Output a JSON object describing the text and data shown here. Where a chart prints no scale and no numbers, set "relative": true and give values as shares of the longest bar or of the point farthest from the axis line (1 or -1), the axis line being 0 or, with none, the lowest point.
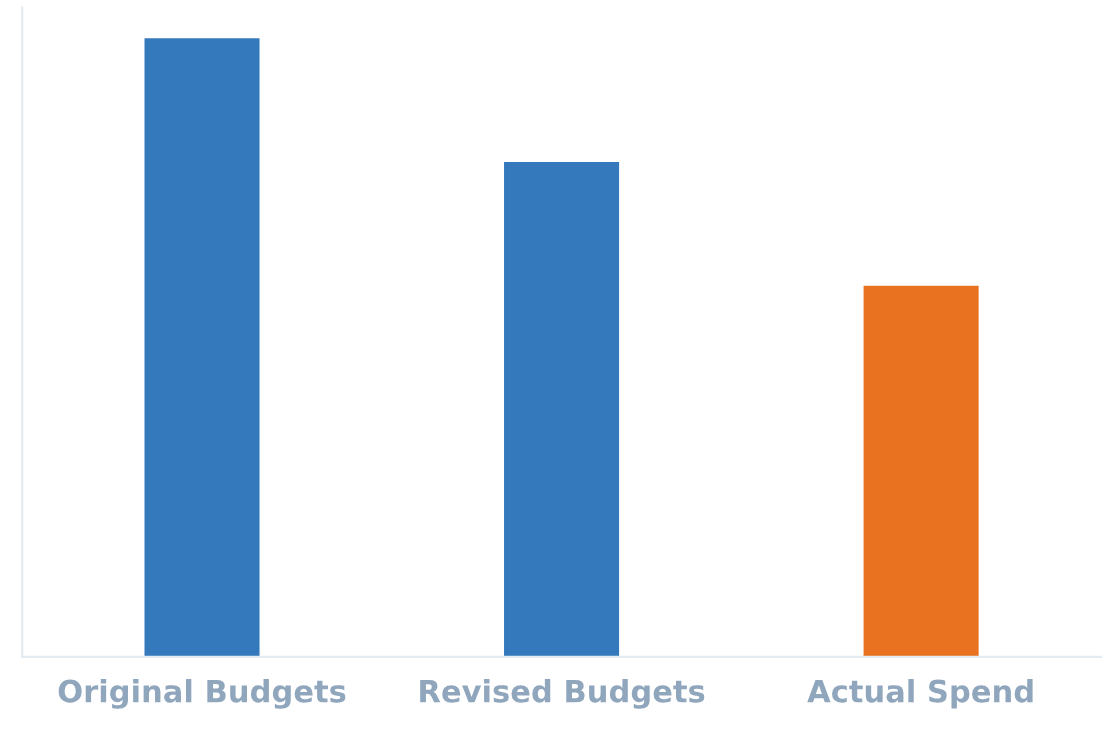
{
  "chart_data": {
    "type": "bar",
    "relative": true,
    "categories": [
      "Original Budgets",
      "Revised Budgets",
      "Actual Spend"
    ],
    "values": [
      1,
      0.8,
      0.6
    ],
    "colors": [
      "#3579bd",
      "#3579bd",
      "#e8721f"
    ],
    "grid": false,
    "legend": false
  }
}
